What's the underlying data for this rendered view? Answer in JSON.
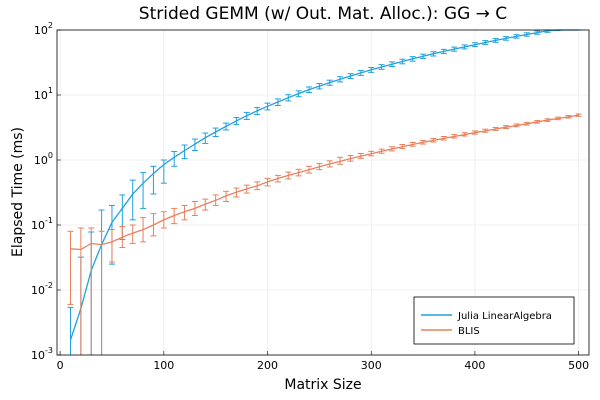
{
  "chart_data": {
    "type": "line",
    "title": "Strided GEMM (w/ Out. Mat. Alloc.): GG → C",
    "xlabel": "Matrix Size",
    "ylabel": "Elapsed Time (ms)",
    "xlim": [
      -3,
      510
    ],
    "ylim": [
      0.001,
      100
    ],
    "yscale": "log",
    "grid": true,
    "legend_position": "bottom-right",
    "x_ticks": [
      0,
      100,
      200,
      300,
      400,
      500
    ],
    "x_tick_labels": [
      "0",
      "100",
      "200",
      "300",
      "400",
      "500"
    ],
    "y_ticks": [
      0.001,
      0.01,
      0.1,
      1,
      10,
      100
    ],
    "y_tick_labels": [
      {
        "base": "10",
        "exp": "-3"
      },
      {
        "base": "10",
        "exp": "-2"
      },
      {
        "base": "10",
        "exp": "-1"
      },
      {
        "base": "10",
        "exp": "0"
      },
      {
        "base": "10",
        "exp": "1"
      },
      {
        "base": "10",
        "exp": "2"
      }
    ],
    "x": [
      10,
      20,
      30,
      40,
      50,
      60,
      70,
      80,
      90,
      100,
      110,
      120,
      130,
      140,
      150,
      160,
      170,
      180,
      190,
      200,
      210,
      220,
      230,
      240,
      250,
      260,
      270,
      280,
      290,
      300,
      310,
      320,
      330,
      340,
      350,
      360,
      370,
      380,
      390,
      400,
      410,
      420,
      430,
      440,
      450,
      460,
      470,
      480,
      490,
      500
    ],
    "series": [
      {
        "name": "Julia LinearAlgebra",
        "color": "#1fa0e0",
        "values": [
          0.0017,
          0.0052,
          0.02,
          0.05,
          0.11,
          0.18,
          0.3,
          0.44,
          0.62,
          0.85,
          1.1,
          1.4,
          1.75,
          2.2,
          2.7,
          3.3,
          4.0,
          4.8,
          5.7,
          6.7,
          7.8,
          9.1,
          10.5,
          12.1,
          13.7,
          15.5,
          17.5,
          19.6,
          21.9,
          24.4,
          27.0,
          29.8,
          32.8,
          36.0,
          39.4,
          43.0,
          46.8,
          50.8,
          55.0,
          59.5,
          64.2,
          69.1,
          74.3,
          79.7,
          85.3,
          91.2,
          97.3,
          103.6,
          110.2,
          117.0
        ],
        "err_low": [
          null,
          0.001,
          0.001,
          0.001,
          0.025,
          0.06,
          0.12,
          0.18,
          0.3,
          0.44,
          0.8,
          1.05,
          1.4,
          1.8,
          2.3,
          2.9,
          3.5,
          4.2,
          5.0,
          5.9,
          6.9,
          8.1,
          9.4,
          10.9,
          12.4,
          14.1,
          15.9,
          17.9,
          20.0,
          22.3,
          24.8,
          27.4,
          30.2,
          33.2,
          36.4,
          39.8,
          43.4,
          47.2,
          51.2,
          55.5,
          60.0,
          64.7,
          69.7,
          74.9,
          80.3,
          86.0,
          92.0,
          98.2,
          104.6,
          111.3
        ],
        "err_high": [
          0.0054,
          0.032,
          0.078,
          0.17,
          0.2,
          0.29,
          0.49,
          0.64,
          0.8,
          1.0,
          1.35,
          1.7,
          2.1,
          2.6,
          3.1,
          3.7,
          4.5,
          5.4,
          6.4,
          7.5,
          8.7,
          10.1,
          11.6,
          13.3,
          15.0,
          16.9,
          19.1,
          21.3,
          23.8,
          26.5,
          29.3,
          32.3,
          35.5,
          38.9,
          42.5,
          46.3,
          50.4,
          54.6,
          59.0,
          63.7,
          68.6,
          73.7,
          79.1,
          84.7,
          90.5,
          96.6,
          102.9,
          109.5,
          116.4,
          123.5
        ]
      },
      {
        "name": "BLIS",
        "color": "#e8805c",
        "values": [
          0.043,
          0.042,
          0.052,
          0.05,
          0.055,
          0.065,
          0.075,
          0.085,
          0.1,
          0.12,
          0.14,
          0.16,
          0.18,
          0.21,
          0.24,
          0.28,
          0.32,
          0.36,
          0.4,
          0.46,
          0.52,
          0.58,
          0.64,
          0.71,
          0.79,
          0.87,
          0.95,
          1.05,
          1.15,
          1.25,
          1.36,
          1.48,
          1.6,
          1.73,
          1.87,
          2.0,
          2.15,
          2.3,
          2.46,
          2.63,
          2.8,
          3.0,
          3.2,
          3.4,
          3.6,
          3.85,
          4.1,
          4.35,
          4.6,
          4.9
        ],
        "err_low": [
          0.006,
          0.001,
          0.001,
          0.001,
          0.027,
          0.045,
          0.052,
          0.055,
          0.068,
          0.09,
          0.105,
          0.12,
          0.14,
          0.17,
          0.2,
          0.23,
          0.27,
          0.31,
          0.35,
          0.4,
          0.46,
          0.51,
          0.57,
          0.63,
          0.71,
          0.78,
          0.86,
          0.96,
          1.06,
          1.16,
          1.27,
          1.38,
          1.5,
          1.63,
          1.76,
          1.89,
          2.03,
          2.18,
          2.34,
          2.5,
          2.67,
          2.86,
          3.05,
          3.25,
          3.45,
          3.68,
          3.93,
          4.17,
          4.42,
          4.7
        ],
        "err_high": [
          0.08,
          0.09,
          0.09,
          0.08,
          0.085,
          0.095,
          0.1,
          0.13,
          0.15,
          0.16,
          0.18,
          0.2,
          0.23,
          0.25,
          0.29,
          0.33,
          0.37,
          0.41,
          0.46,
          0.52,
          0.58,
          0.65,
          0.72,
          0.8,
          0.88,
          0.97,
          1.1,
          1.17,
          1.26,
          1.36,
          1.47,
          1.6,
          1.73,
          1.86,
          2.0,
          2.14,
          2.3,
          2.46,
          2.63,
          2.8,
          2.98,
          3.17,
          3.37,
          3.58,
          3.8,
          4.04,
          4.3,
          4.56,
          4.82,
          5.1
        ]
      }
    ]
  }
}
